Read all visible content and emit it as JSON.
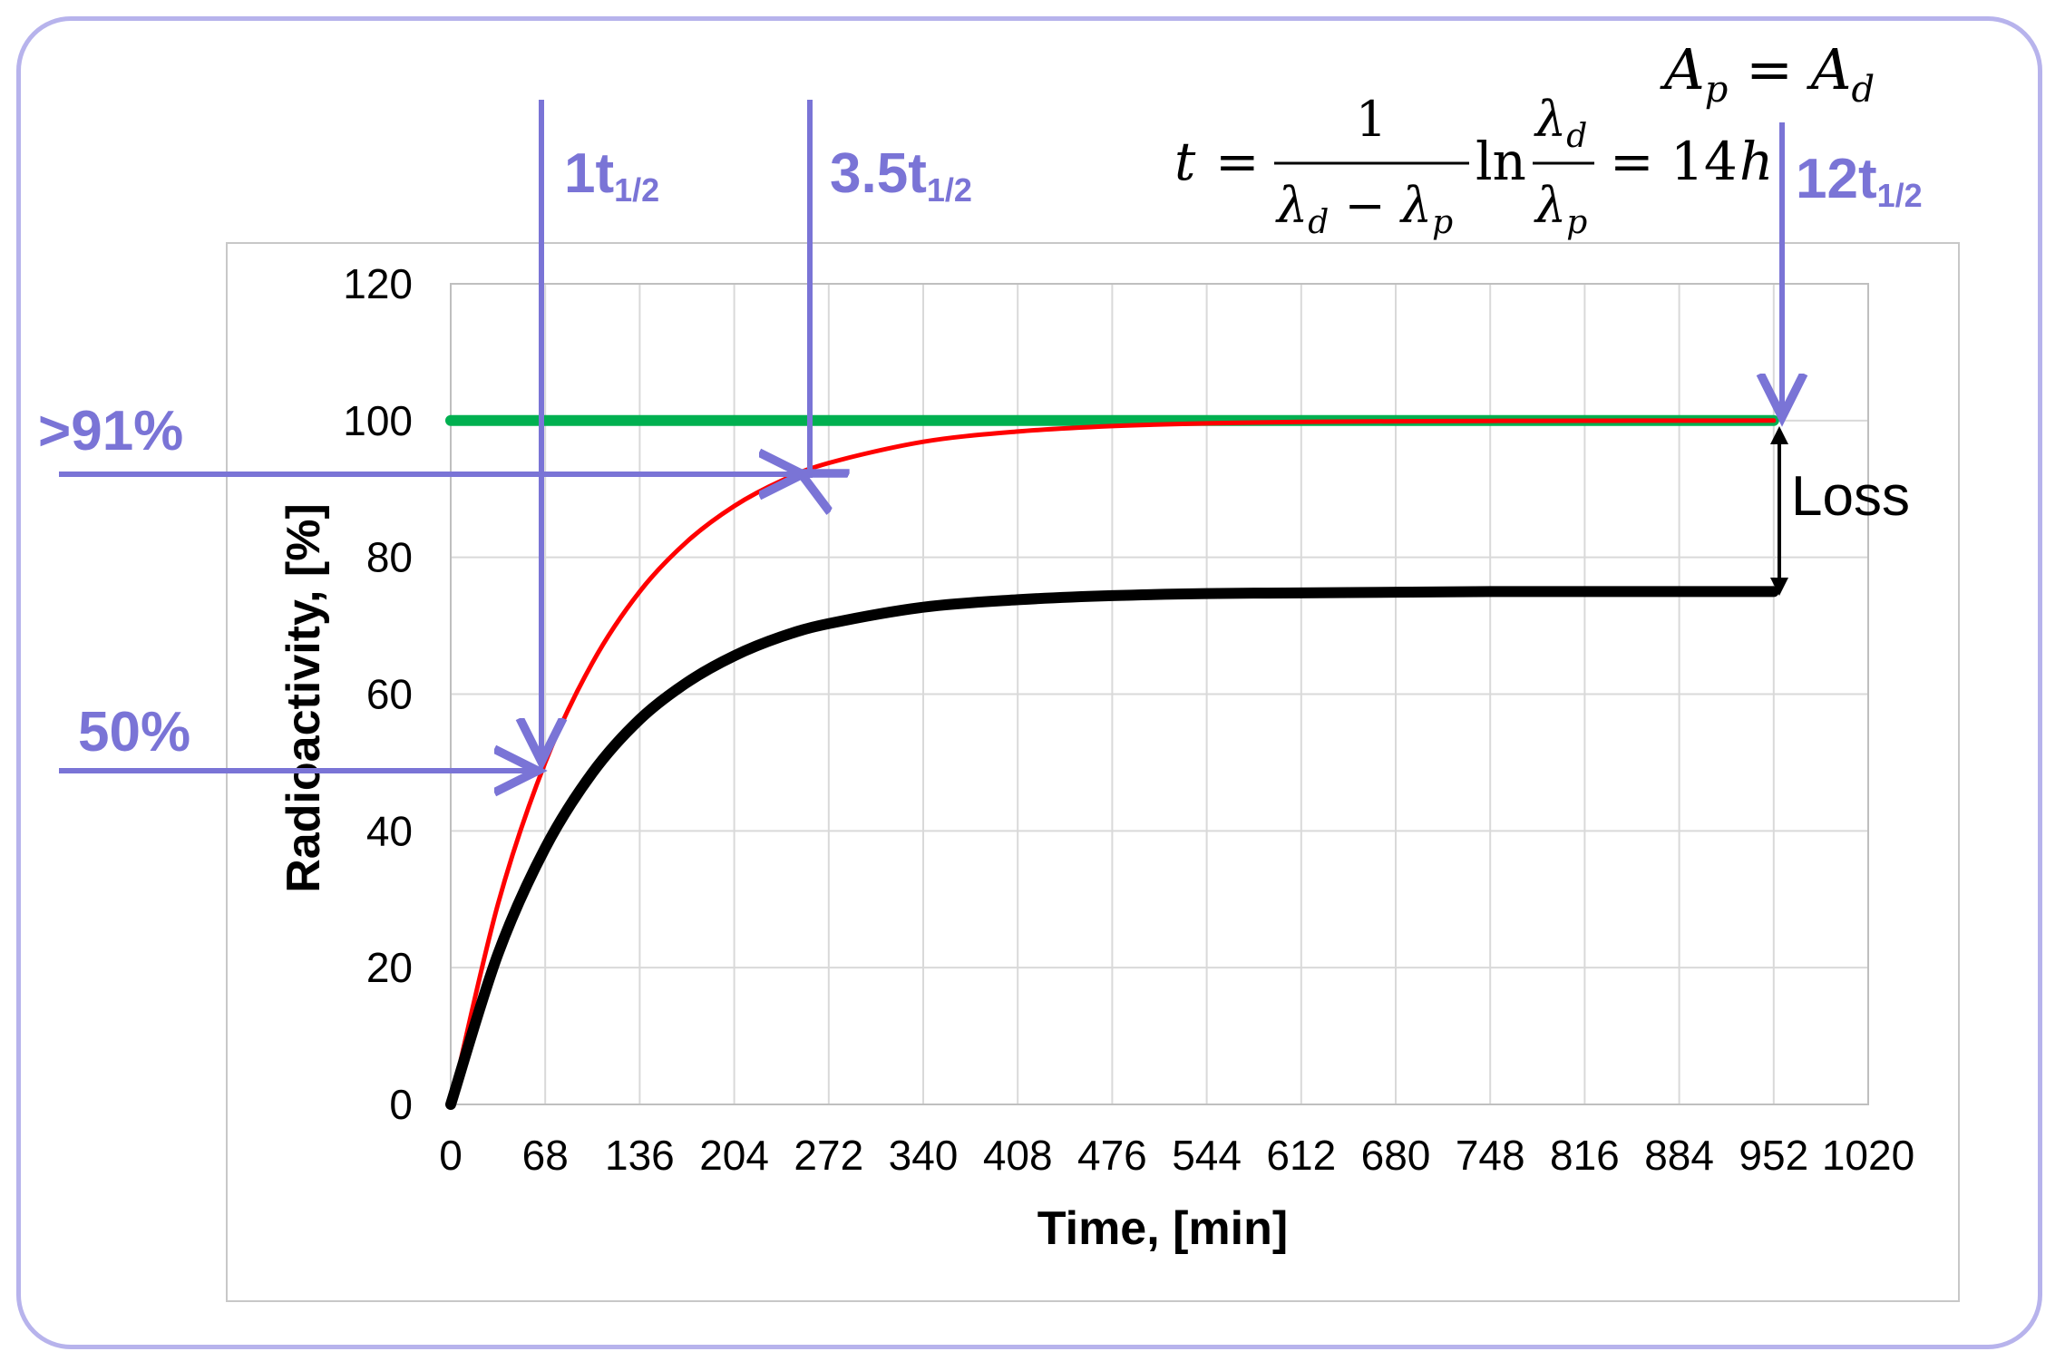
{
  "chart_data": {
    "type": "line",
    "title": "",
    "xlabel": "Time, [min]",
    "ylabel": "Radioactivity, [%]",
    "xlim": [
      0,
      1020
    ],
    "ylim": [
      0,
      120
    ],
    "x_ticks": [
      "0",
      "68",
      "136",
      "204",
      "272",
      "340",
      "408",
      "476",
      "544",
      "612",
      "680",
      "748",
      "816",
      "884",
      "952",
      "1020"
    ],
    "y_ticks": [
      "0",
      "20",
      "40",
      "60",
      "80",
      "100",
      "120"
    ],
    "grid": true,
    "legend": "none",
    "series": [
      {
        "color": "#00b050",
        "x": [
          0,
          952
        ],
        "values": [
          100,
          100
        ]
      },
      {
        "color": "#ff0000",
        "x": [
          0,
          34,
          68,
          102,
          136,
          170,
          204,
          238,
          272,
          340,
          408,
          476,
          544,
          612,
          680,
          748,
          816,
          884,
          952
        ],
        "values": [
          0,
          29.3,
          50,
          64.6,
          75,
          82.3,
          87.5,
          91.2,
          93.8,
          96.9,
          98.4,
          99.2,
          99.6,
          99.8,
          99.9,
          99.95,
          99.98,
          99.99,
          100
        ]
      },
      {
        "color": "#000000",
        "x": [
          0,
          34,
          68,
          102,
          136,
          170,
          204,
          238,
          272,
          340,
          408,
          476,
          544,
          612,
          680,
          748,
          816,
          884,
          952
        ],
        "values": [
          0,
          22,
          37.5,
          48.5,
          56.3,
          61.7,
          65.6,
          68.4,
          70.3,
          72.7,
          73.8,
          74.4,
          74.7,
          74.8,
          74.9,
          75,
          75,
          75,
          75
        ]
      }
    ],
    "annotations": {
      "arrow_1": "1t",
      "arrow_1_sub": "1/2",
      "arrow_2": "3.5t",
      "arrow_2_sub": "1/2",
      "arrow_3": "12t",
      "arrow_3_sub": "1/2",
      "level_1": ">91%",
      "level_2": "50%",
      "gap_label": "Loss",
      "formula_top": "A_p = A_d",
      "formula_main": "t = 1/(λ_d − λ_p) ln λ_d/λ_p = 14h"
    }
  },
  "colors": {
    "annotation": "#7a74d6",
    "frame": "#b7b3ec",
    "grid": "#d9d9d9",
    "plot_border": "#bfbfbf"
  }
}
